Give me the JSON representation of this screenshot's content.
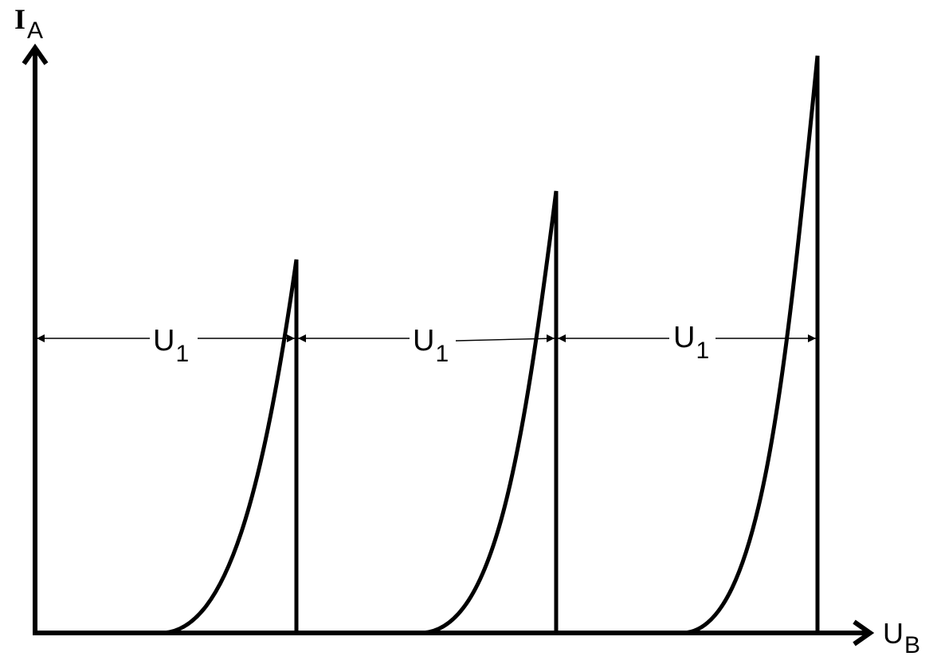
{
  "axes": {
    "y": {
      "symbol": "I",
      "subscript": "A"
    },
    "x": {
      "symbol": "U",
      "subscript": "B"
    }
  },
  "peaks": [
    {
      "name": "peak-1"
    },
    {
      "name": "peak-2"
    },
    {
      "name": "peak-3"
    }
  ],
  "spacings": [
    {
      "symbol": "U",
      "subscript": "1"
    },
    {
      "symbol": "U",
      "subscript": "1"
    },
    {
      "symbol": "U",
      "subscript": "1"
    }
  ],
  "colors": {
    "stroke": "#000000",
    "background": "#ffffff"
  }
}
